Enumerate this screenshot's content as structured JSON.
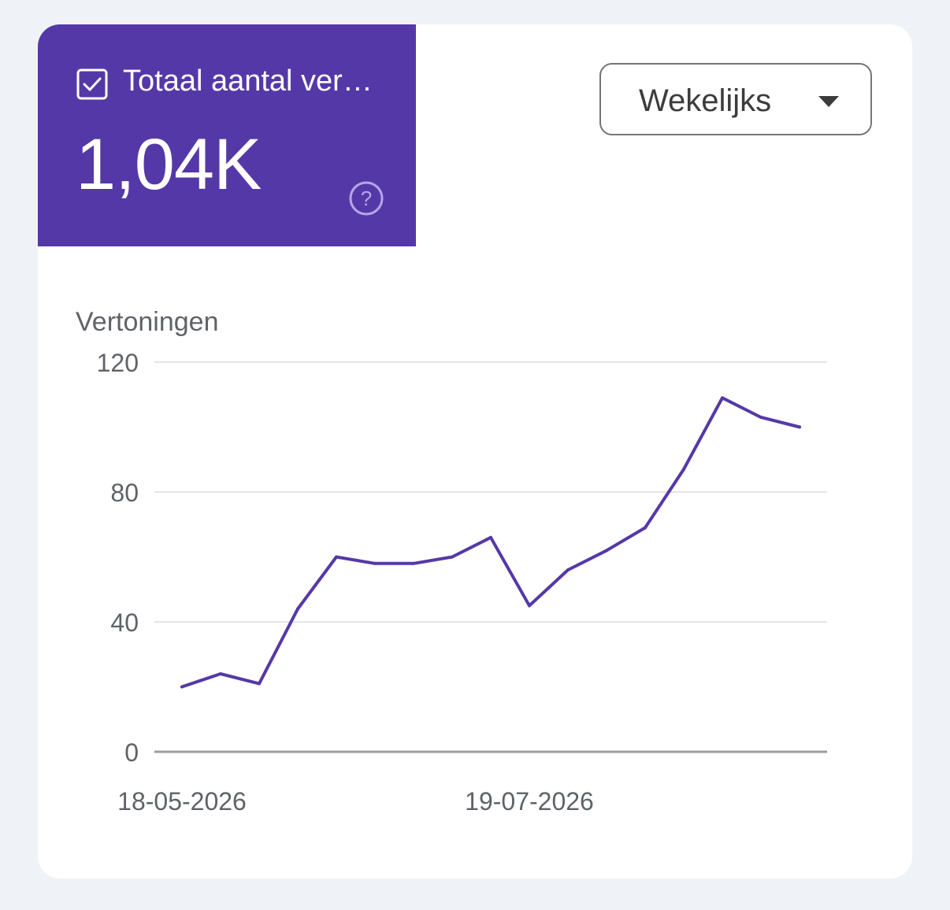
{
  "metric": {
    "label": "Totaal aantal vertoningen",
    "value": "1,04K",
    "checked": true,
    "check_icon": "checkbox-checked-icon",
    "help_icon": "help-circle-icon",
    "tile_color": "#5538a8"
  },
  "period": {
    "selected": "Wekelijks",
    "icon": "caret-down-icon"
  },
  "chart_data": {
    "type": "line",
    "ylabel": "Vertoningen",
    "ylim": [
      0,
      120
    ],
    "yticks": [
      "0",
      "40",
      "80",
      "120"
    ],
    "xticks": [
      "18-05-2026",
      "19-07-2026"
    ],
    "grid": true,
    "series": [
      {
        "color": "#5538a8",
        "x": [
          "18-05-2026",
          "25-05-2026",
          "01-06-2026",
          "08-06-2026",
          "15-06-2026",
          "22-06-2026",
          "29-06-2026",
          "06-07-2026",
          "13-07-2026",
          "19-07-2026",
          "26-07-2026",
          "02-08-2026",
          "09-08-2026",
          "16-08-2026",
          "23-08-2026",
          "30-08-2026",
          "06-09-2026"
        ],
        "values": [
          20,
          24,
          21,
          44,
          60,
          58,
          58,
          60,
          66,
          45,
          56,
          62,
          69,
          87,
          109,
          103,
          100
        ]
      }
    ]
  }
}
